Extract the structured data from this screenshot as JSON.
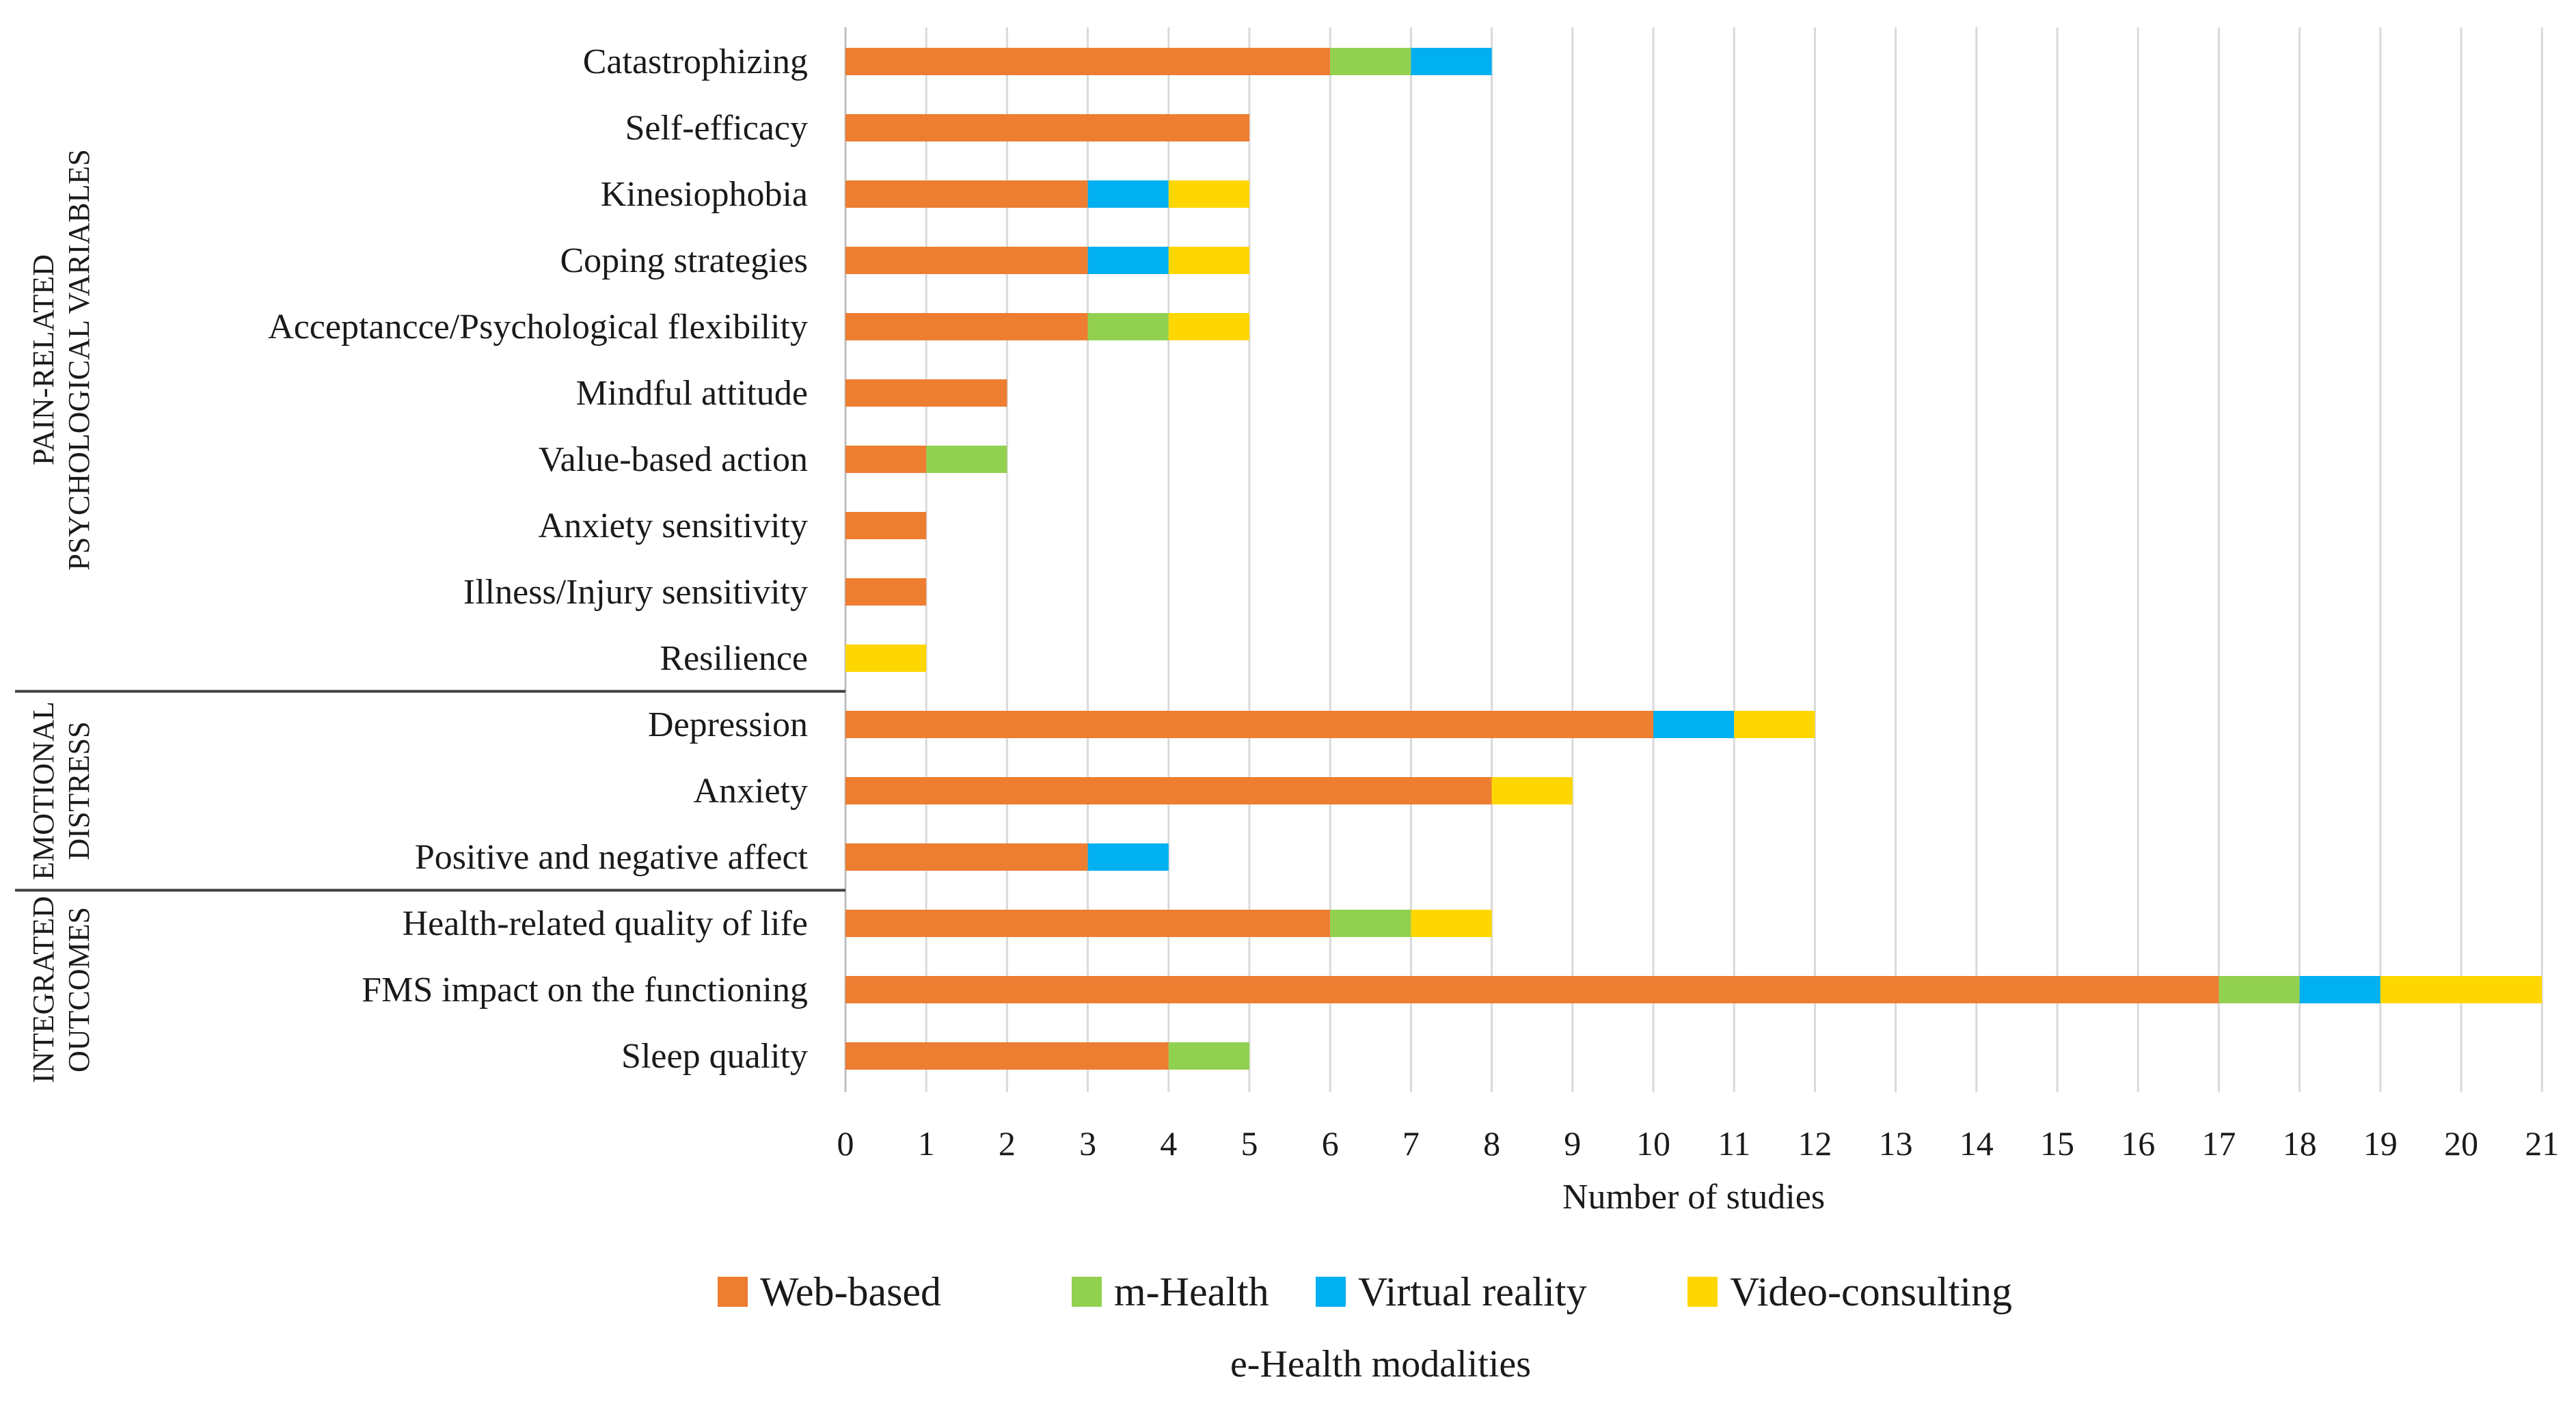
{
  "chart_data": {
    "type": "bar",
    "orientation": "horizontal",
    "stacked": true,
    "categories": [
      "Catastrophizing",
      "Self-efficacy",
      "Kinesiophobia",
      "Coping strategies",
      "Acceptancce/Psychological flexibility",
      "Mindful attitude",
      "Value-based action",
      "Anxiety sensitivity",
      "Illness/Injury sensitivity",
      "Resilience",
      "Depression",
      "Anxiety",
      "Positive and negative affect",
      "Health-related quality of life",
      "FMS impact on the functioning",
      "Sleep quality"
    ],
    "series": [
      {
        "name": "Web-based",
        "color": "#ED7D31",
        "values": [
          6,
          5,
          3,
          3,
          3,
          2,
          1,
          1,
          1,
          0,
          10,
          8,
          3,
          6,
          17,
          4
        ]
      },
      {
        "name": "m-Health",
        "color": "#92D050",
        "values": [
          1,
          0,
          0,
          0,
          1,
          0,
          1,
          0,
          0,
          0,
          0,
          0,
          0,
          1,
          1,
          1
        ]
      },
      {
        "name": "Virtual reality",
        "color": "#00B0F0",
        "values": [
          1,
          0,
          1,
          1,
          0,
          0,
          0,
          0,
          0,
          0,
          1,
          0,
          1,
          0,
          1,
          0
        ]
      },
      {
        "name": "Video-consulting",
        "color": "#FFD700",
        "values": [
          0,
          0,
          1,
          1,
          1,
          0,
          0,
          0,
          0,
          1,
          1,
          1,
          0,
          1,
          2,
          0
        ]
      }
    ],
    "groups": [
      {
        "lines": [
          "PAIN-RELATED",
          "PSYCHOLOGICAL VARIABLES"
        ],
        "start": 0,
        "end": 9
      },
      {
        "lines": [
          "EMOTIONAL",
          "DISTRESS"
        ],
        "start": 10,
        "end": 12
      },
      {
        "lines": [
          "INTEGRATED",
          "OUTCOMES"
        ],
        "start": 13,
        "end": 15
      }
    ],
    "xlim": [
      0,
      21
    ],
    "xticks": [
      0,
      1,
      2,
      3,
      4,
      5,
      6,
      7,
      8,
      9,
      10,
      11,
      12,
      13,
      14,
      15,
      16,
      17,
      18,
      19,
      20,
      21
    ],
    "xlabel": "Number of studies",
    "legend_title": "e-Health modalities",
    "legend_position": "bottom",
    "grid": true,
    "grid_color": "#d9d9d9"
  }
}
